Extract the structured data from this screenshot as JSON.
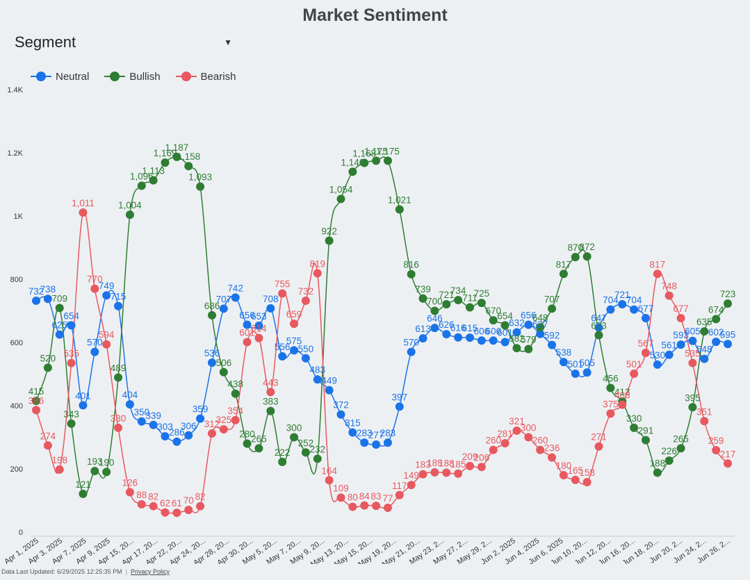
{
  "title": "Market Sentiment",
  "segment": {
    "label": "Segment",
    "caret_icon": "caret-down-icon"
  },
  "legend": [
    {
      "name": "Neutral",
      "color": "#1a73e8"
    },
    {
      "name": "Bullish",
      "color": "#2e7d32"
    },
    {
      "name": "Bearish",
      "color": "#e8585f"
    }
  ],
  "footer": {
    "updated": "Data Last Updated: 6/29/2025 12:25:35 PM",
    "privacy": "Privacy Policy"
  },
  "chart_data": {
    "type": "line",
    "title": "Market Sentiment",
    "xlabel": "",
    "ylabel": "",
    "ylim": [
      0,
      1400
    ],
    "y_ticks": [
      "0",
      "200",
      "400",
      "600",
      "800",
      "1K",
      "1.2K",
      "1.4K"
    ],
    "legend_position": "top-left",
    "grid": false,
    "x_tick_labels": [
      "Apr 1, 2025",
      "Apr 3, 2025",
      "Apr 7, 2025",
      "Apr 9, 2025",
      "Apr 15, 20...",
      "Apr 17, 20...",
      "Apr 22, 20...",
      "Apr 24, 20...",
      "Apr 28, 20...",
      "Apr 30, 20...",
      "May 5, 20...",
      "May 7, 20...",
      "May 9, 20...",
      "May 13, 20...",
      "May 15, 20...",
      "May 19, 20...",
      "May 21, 20...",
      "May 23, 2...",
      "May 27, 2...",
      "May 29, 2...",
      "Jun 2, 2025",
      "Jun 4, 2025",
      "Jun 6, 2025",
      "Jun 10, 20...",
      "Jun 12, 20...",
      "Jun 16, 20...",
      "Jun 18, 20...",
      "Jun 20, 2...",
      "Jun 24, 2...",
      "Jun 26, 2..."
    ],
    "series": [
      {
        "name": "Neutral",
        "color": "#1a73e8",
        "values": [
          732,
          738,
          625,
          654,
          401,
          570,
          749,
          715,
          404,
          350,
          339,
          303,
          286,
          306,
          359,
          536,
          707,
          742,
          656,
          653,
          708,
          556,
          575,
          550,
          483,
          449,
          372,
          315,
          283,
          277,
          283,
          397,
          570,
          613,
          646,
          626,
          616,
          615,
          606,
          606,
          601,
          632,
          656,
          627,
          592,
          538,
          501,
          505,
          647,
          704,
          721,
          704,
          677,
          530,
          561,
          593,
          605,
          548,
          602,
          595
        ],
        "labels": [
          "732",
          "738",
          "625",
          "654",
          "401",
          "570",
          "749",
          "715",
          "404",
          "350",
          "339",
          "303",
          "286",
          "306",
          "359",
          "536",
          "707",
          "742",
          "656",
          "653",
          "708",
          "556",
          "575",
          "550",
          "483",
          "449",
          "372",
          "315",
          "283",
          "277",
          "283",
          "397",
          "570",
          "613",
          "646",
          "626",
          "616",
          "615",
          "606",
          "606",
          "601",
          "632",
          "656",
          "627",
          "592",
          "538",
          "501",
          "505",
          "647",
          "704",
          "721",
          "704",
          "677",
          "530",
          "561",
          "593",
          "605",
          "548",
          "602",
          "595"
        ]
      },
      {
        "name": "Bullish",
        "color": "#2e7d32",
        "values": [
          415,
          520,
          709,
          343,
          121,
          193,
          190,
          489,
          1004,
          1096,
          1113,
          1169,
          1187,
          1158,
          1093,
          686,
          506,
          438,
          280,
          265,
          383,
          222,
          300,
          252,
          232,
          922,
          1054,
          1140,
          1168,
          1175,
          1175,
          1021,
          816,
          739,
          700,
          721,
          734,
          711,
          725,
          670,
          654,
          582,
          579,
          648,
          707,
          817,
          870,
          872,
          623,
          456,
          413,
          330,
          291,
          188,
          226,
          265,
          395,
          635,
          674,
          723
        ],
        "labels": [
          "415",
          "520",
          "709",
          "343",
          "121",
          "193",
          "190",
          "489",
          "1,004",
          "1,096",
          "1,113",
          "1,169",
          "1,187",
          "1,158",
          "1,093",
          "686",
          "506",
          "438",
          "280",
          "265",
          "383",
          "222",
          "300",
          "252",
          "232",
          "922",
          "1,054",
          "1,140",
          "1,168",
          "1,175",
          "1,175",
          "1,021",
          "816",
          "739",
          "700",
          "721",
          "734",
          "711",
          "725",
          "670",
          "654",
          "582",
          "579",
          "648",
          "707",
          "817",
          "870",
          "872",
          "623",
          "456",
          "413",
          "330",
          "291",
          "188",
          "226",
          "265",
          "395",
          "635",
          "674",
          "723"
        ]
      },
      {
        "name": "Bearish",
        "color": "#e8585f",
        "values": [
          386,
          274,
          198,
          535,
          1011,
          770,
          594,
          330,
          126,
          88,
          82,
          62,
          61,
          70,
          82,
          312,
          325,
          354,
          601,
          614,
          443,
          755,
          659,
          732,
          819,
          164,
          109,
          80,
          84,
          83,
          77,
          117,
          149,
          183,
          189,
          188,
          185,
          209,
          206,
          260,
          281,
          321,
          300,
          260,
          236,
          180,
          165,
          158,
          271,
          375,
          403,
          501,
          567,
          817,
          748,
          677,
          535,
          351,
          259,
          217
        ],
        "labels": [
          "386",
          "274",
          "198",
          "535",
          "1,011",
          "770",
          "594",
          "330",
          "126",
          "88",
          "82",
          "62",
          "61",
          "70",
          "82",
          "312",
          "325",
          "354",
          "601",
          "614",
          "443",
          "755",
          "659",
          "732",
          "819",
          "164",
          "109",
          "80",
          "84",
          "83",
          "77",
          "117",
          "149",
          "183",
          "189",
          "188",
          "185",
          "209",
          "206",
          "260",
          "281",
          "321",
          "300",
          "260",
          "236",
          "180",
          "165",
          "158",
          "271",
          "375",
          "403",
          "501",
          "567",
          "817",
          "748",
          "677",
          "535",
          "351",
          "259",
          "217"
        ]
      }
    ]
  }
}
